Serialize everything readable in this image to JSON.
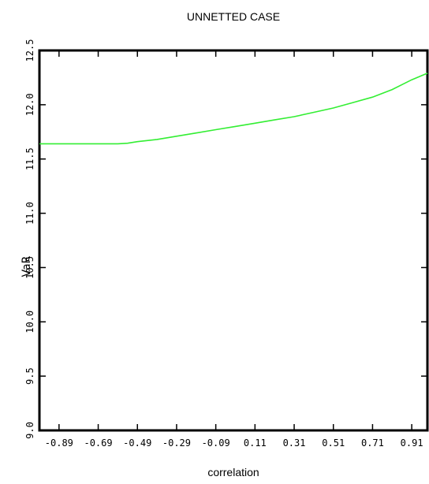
{
  "chart_data": {
    "type": "line",
    "title": "UNNETTED CASE",
    "xlabel": "correlation",
    "ylabel": "VaR",
    "xlim": [
      -0.99,
      0.99
    ],
    "ylim": [
      9.0,
      12.5
    ],
    "xticks": [
      -0.89,
      -0.69,
      -0.49,
      -0.29,
      -0.09,
      0.11,
      0.31,
      0.51,
      0.71,
      0.91
    ],
    "xtick_labels": [
      "-0.89",
      "-0.69",
      "-0.49",
      "-0.29",
      "-0.09",
      "0.11",
      "0.31",
      "0.51",
      "0.71",
      "0.91"
    ],
    "yticks": [
      9.0,
      9.5,
      10.0,
      10.5,
      11.0,
      11.5,
      12.0,
      12.5
    ],
    "ytick_labels": [
      "9.0",
      "9.5",
      "10.0",
      "10.5",
      "11.0",
      "11.5",
      "12.0",
      "12.5"
    ],
    "grid": false,
    "series": [
      {
        "color": "#33ee33",
        "x": [
          -0.99,
          -0.89,
          -0.79,
          -0.69,
          -0.59,
          -0.54,
          -0.49,
          -0.39,
          -0.29,
          -0.19,
          -0.09,
          0.01,
          0.11,
          0.21,
          0.31,
          0.41,
          0.51,
          0.61,
          0.71,
          0.81,
          0.91,
          0.99
        ],
        "y": [
          11.64,
          11.64,
          11.64,
          11.64,
          11.64,
          11.645,
          11.66,
          11.68,
          11.71,
          11.74,
          11.77,
          11.8,
          11.83,
          11.86,
          11.89,
          11.93,
          11.97,
          12.02,
          12.07,
          12.14,
          12.23,
          12.29
        ]
      }
    ]
  }
}
